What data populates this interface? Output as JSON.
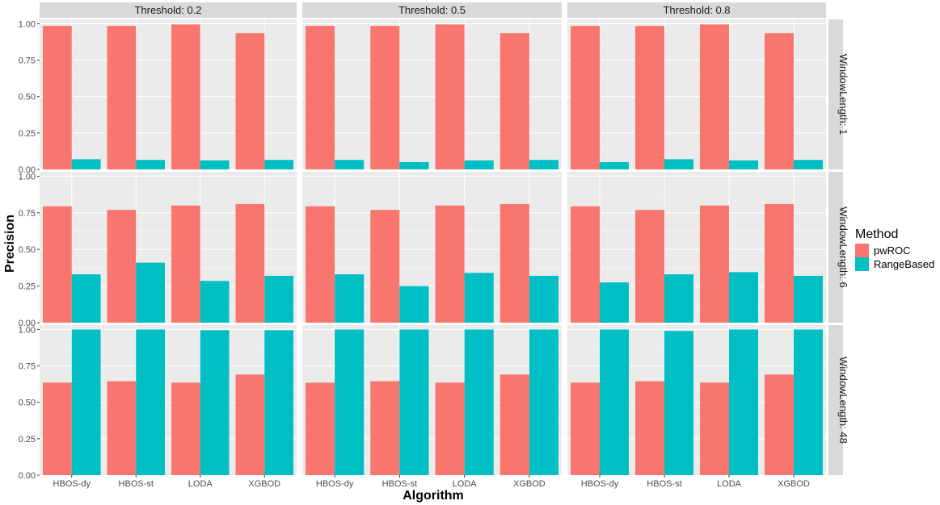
{
  "chart_data": {
    "type": "bar",
    "facet_columns": {
      "name": "Threshold",
      "labels": [
        "Threshold: 0.2",
        "Threshold: 0.5",
        "Threshold: 0.8"
      ]
    },
    "facet_rows": {
      "name": "WindowLength",
      "labels": [
        "WindowLength: 1",
        "WindowLength: 6",
        "WindowLength: 48"
      ]
    },
    "categories": [
      "HBOS-dy",
      "HBOS-st",
      "LODA",
      "XGBOD"
    ],
    "xlabel": "Algorithm",
    "ylabel": "Precision",
    "ylim": [
      0,
      1.03
    ],
    "yticks": [
      "0.00",
      "0.25",
      "0.50",
      "0.75",
      "1.00"
    ],
    "legend": {
      "title": "Method",
      "position": "right",
      "entries": [
        {
          "name": "pwROC",
          "color": "#F8766D"
        },
        {
          "name": "RangeBased",
          "color": "#00BFC4"
        }
      ]
    },
    "panels": [
      [
        {
          "pwROC": [
            0.985,
            0.985,
            0.995,
            0.935
          ],
          "RangeBased": [
            0.07,
            0.065,
            0.062,
            0.065
          ]
        },
        {
          "pwROC": [
            0.985,
            0.985,
            0.995,
            0.935
          ],
          "RangeBased": [
            0.065,
            0.05,
            0.062,
            0.065
          ]
        },
        {
          "pwROC": [
            0.985,
            0.985,
            0.995,
            0.935
          ],
          "RangeBased": [
            0.05,
            0.07,
            0.062,
            0.065
          ]
        }
      ],
      [
        {
          "pwROC": [
            0.795,
            0.77,
            0.8,
            0.81
          ],
          "RangeBased": [
            0.33,
            0.41,
            0.285,
            0.32
          ]
        },
        {
          "pwROC": [
            0.795,
            0.77,
            0.8,
            0.81
          ],
          "RangeBased": [
            0.33,
            0.25,
            0.34,
            0.32
          ]
        },
        {
          "pwROC": [
            0.795,
            0.77,
            0.8,
            0.81
          ],
          "RangeBased": [
            0.275,
            0.33,
            0.345,
            0.32
          ]
        }
      ],
      [
        {
          "pwROC": [
            0.635,
            0.645,
            0.635,
            0.69
          ],
          "RangeBased": [
            1.0,
            1.0,
            0.995,
            0.995
          ]
        },
        {
          "pwROC": [
            0.635,
            0.645,
            0.635,
            0.69
          ],
          "RangeBased": [
            1.0,
            1.0,
            1.0,
            1.0
          ]
        },
        {
          "pwROC": [
            0.635,
            0.645,
            0.635,
            0.69
          ],
          "RangeBased": [
            1.0,
            0.99,
            1.0,
            1.0
          ]
        }
      ]
    ]
  }
}
